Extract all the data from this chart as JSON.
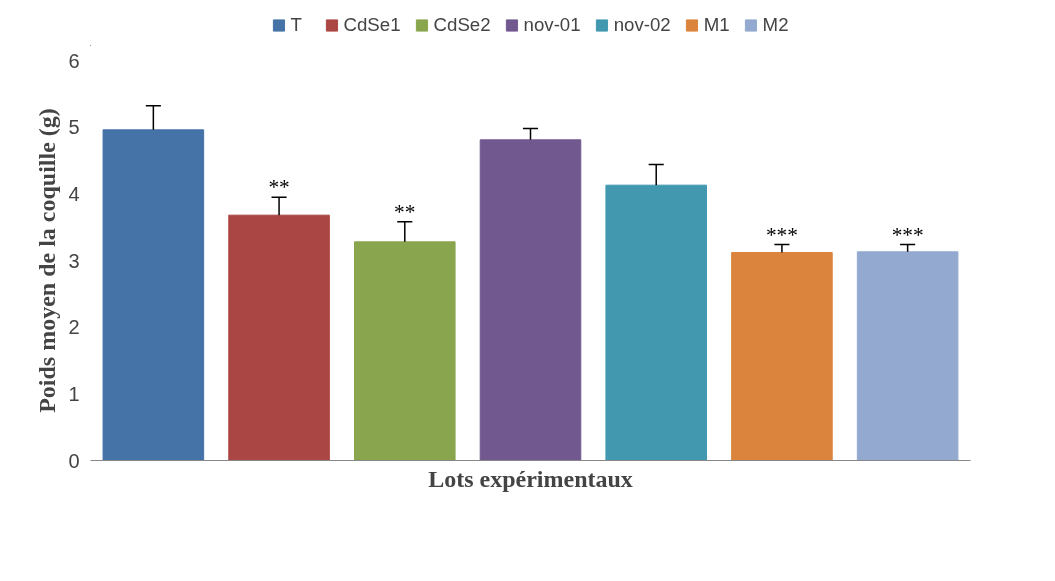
{
  "chart_data": {
    "type": "bar",
    "xlabel": "Lots expérimentaux",
    "ylabel": "Poids moyen de la coquille (g)",
    "categories": [
      null
    ],
    "series": [
      {
        "name": "T",
        "color": "#4572a7",
        "values": [
          4.96
        ],
        "errors": [
          [
            4.96,
            5.32
          ]
        ]
      },
      {
        "name": "CdSe1",
        "color": "#aa4643",
        "values": [
          3.68
        ],
        "errors": [
          [
            3.68,
            3.95
          ]
        ],
        "value_labels": [
          "**"
        ]
      },
      {
        "name": "CdSe2",
        "color": "#89a54e",
        "values": [
          3.28
        ],
        "errors": [
          [
            3.28,
            3.58
          ]
        ],
        "value_labels": [
          "**"
        ]
      },
      {
        "name": "nov-01",
        "color": "#71588f",
        "values": [
          4.81
        ],
        "errors": [
          [
            4.81,
            4.98
          ]
        ]
      },
      {
        "name": "nov-02",
        "color": "#4198af",
        "values": [
          4.13
        ],
        "errors": [
          [
            4.13,
            4.44
          ]
        ]
      },
      {
        "name": "M1",
        "color": "#db843d",
        "values": [
          3.12
        ],
        "errors": [
          [
            3.12,
            3.24
          ]
        ],
        "value_labels": [
          "***"
        ]
      },
      {
        "name": "M2",
        "color": "#93a9cf",
        "values": [
          3.13
        ],
        "errors": [
          [
            3.13,
            3.24
          ]
        ],
        "value_labels": [
          "***"
        ]
      }
    ],
    "ylim": [
      0,
      6
    ],
    "yticks": [
      0,
      1,
      2,
      3,
      4,
      5,
      6
    ],
    "grid": false,
    "legend": "top"
  }
}
